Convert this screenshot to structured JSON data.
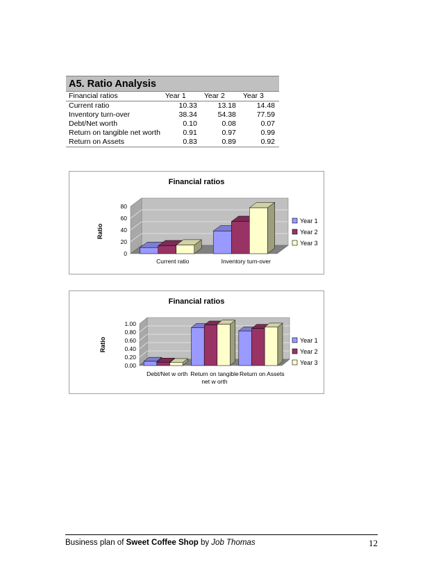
{
  "ratio_table": {
    "title": "A5. Ratio Analysis",
    "columns": [
      "Financial ratios",
      "Year 1",
      "Year 2",
      "Year 3"
    ],
    "rows": [
      {
        "label": "Current ratio",
        "values": [
          "10.33",
          "13.18",
          "14.48"
        ]
      },
      {
        "label": "Inventory turn-over",
        "values": [
          "38.34",
          "54.38",
          "77.59"
        ]
      },
      {
        "label": "Debt/Net worth",
        "values": [
          "0.10",
          "0.08",
          "0.07"
        ]
      },
      {
        "label": "Return on tangible net worth",
        "values": [
          "0.91",
          "0.97",
          "0.99"
        ]
      },
      {
        "label": "Return on Assets",
        "values": [
          "0.83",
          "0.89",
          "0.92"
        ]
      }
    ]
  },
  "chart_data": [
    {
      "type": "bar",
      "style": "3d-clustered",
      "title": "Financial ratios",
      "ylabel": "Ratio",
      "xlabel": "",
      "categories": [
        "Current ratio",
        "Inventory turn-over"
      ],
      "series": [
        {
          "name": "Year 1",
          "values": [
            10.33,
            38.34
          ],
          "color": "#9999ff"
        },
        {
          "name": "Year 2",
          "values": [
            13.18,
            54.38
          ],
          "color": "#993366"
        },
        {
          "name": "Year 3",
          "values": [
            14.48,
            77.59
          ],
          "color": "#ffffcc"
        }
      ],
      "ylim": [
        0,
        80
      ],
      "yticks": [
        "0",
        "20",
        "40",
        "60",
        "80"
      ],
      "grid": true,
      "legend": "right"
    },
    {
      "type": "bar",
      "style": "3d-clustered",
      "title": "Financial ratios",
      "ylabel": "Ratio",
      "xlabel": "",
      "categories": [
        "Debt/Net w orth",
        "Return on tangible net w orth",
        "Return on Assets"
      ],
      "series": [
        {
          "name": "Year 1",
          "values": [
            0.1,
            0.91,
            0.83
          ],
          "color": "#9999ff"
        },
        {
          "name": "Year 2",
          "values": [
            0.08,
            0.97,
            0.89
          ],
          "color": "#993366"
        },
        {
          "name": "Year 3",
          "values": [
            0.07,
            0.99,
            0.92
          ],
          "color": "#ffffcc"
        }
      ],
      "ylim": [
        0,
        1.0
      ],
      "yticks": [
        "0.00",
        "0.20",
        "0.40",
        "0.60",
        "0.80",
        "1.00"
      ],
      "grid": true,
      "legend": "right"
    }
  ],
  "footer": {
    "prefix": "Business plan of ",
    "brand": "Sweet Coffee Shop",
    "by": " by ",
    "author": "Job Thomas",
    "page_number": "12"
  }
}
